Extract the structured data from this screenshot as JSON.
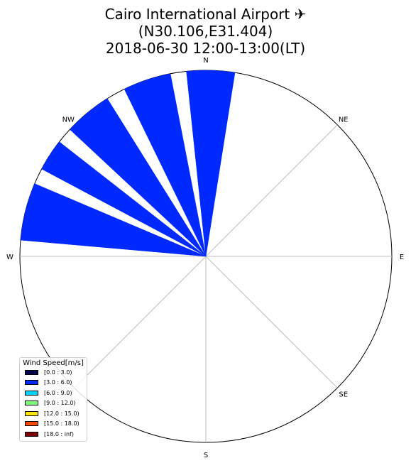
{
  "title": {
    "line1": "Cairo International Airport ✈",
    "line2": "(N30.106,E31.404)",
    "line3": "2018-06-30 12:00-13:00(LT)"
  },
  "chart_data": {
    "type": "windrose",
    "directions": [
      "N",
      "NE",
      "E",
      "SE",
      "S",
      "SW",
      "W",
      "NW"
    ],
    "sector_labels": [
      "N",
      "NE",
      "E",
      "SE",
      "S",
      "W",
      "NW"
    ],
    "grid": true,
    "legend": {
      "title": "Wind Speed[m/s]",
      "placement": "lower-left",
      "bins": [
        {
          "label": "[0.0 : 3.0)",
          "color": "#00004c"
        },
        {
          "label": "[3.0 : 6.0)",
          "color": "#0029ff"
        },
        {
          "label": "[6.0 : 9.0)",
          "color": "#00d5ff"
        },
        {
          "label": "[9.0 : 12.0)",
          "color": "#7dff7a"
        },
        {
          "label": "[12.0 : 15.0)",
          "color": "#ffe600"
        },
        {
          "label": "[15.0 : 18.0)",
          "color": "#ff4a00"
        },
        {
          "label": "[18.0 : inf)",
          "color": "#7f0000"
        }
      ]
    },
    "series": [
      {
        "bin": "[3.0 : 6.0)",
        "color": "#0029ff",
        "petals": [
          {
            "from_deg": 354,
            "to_deg": 9,
            "radius": 1.0
          },
          {
            "from_deg": 334,
            "to_deg": 349,
            "radius": 1.0
          },
          {
            "from_deg": 313,
            "to_deg": 328,
            "radius": 1.0
          },
          {
            "from_deg": 298,
            "to_deg": 308,
            "radius": 1.0
          },
          {
            "from_deg": 275,
            "to_deg": 293,
            "radius": 1.0
          }
        ]
      }
    ]
  }
}
